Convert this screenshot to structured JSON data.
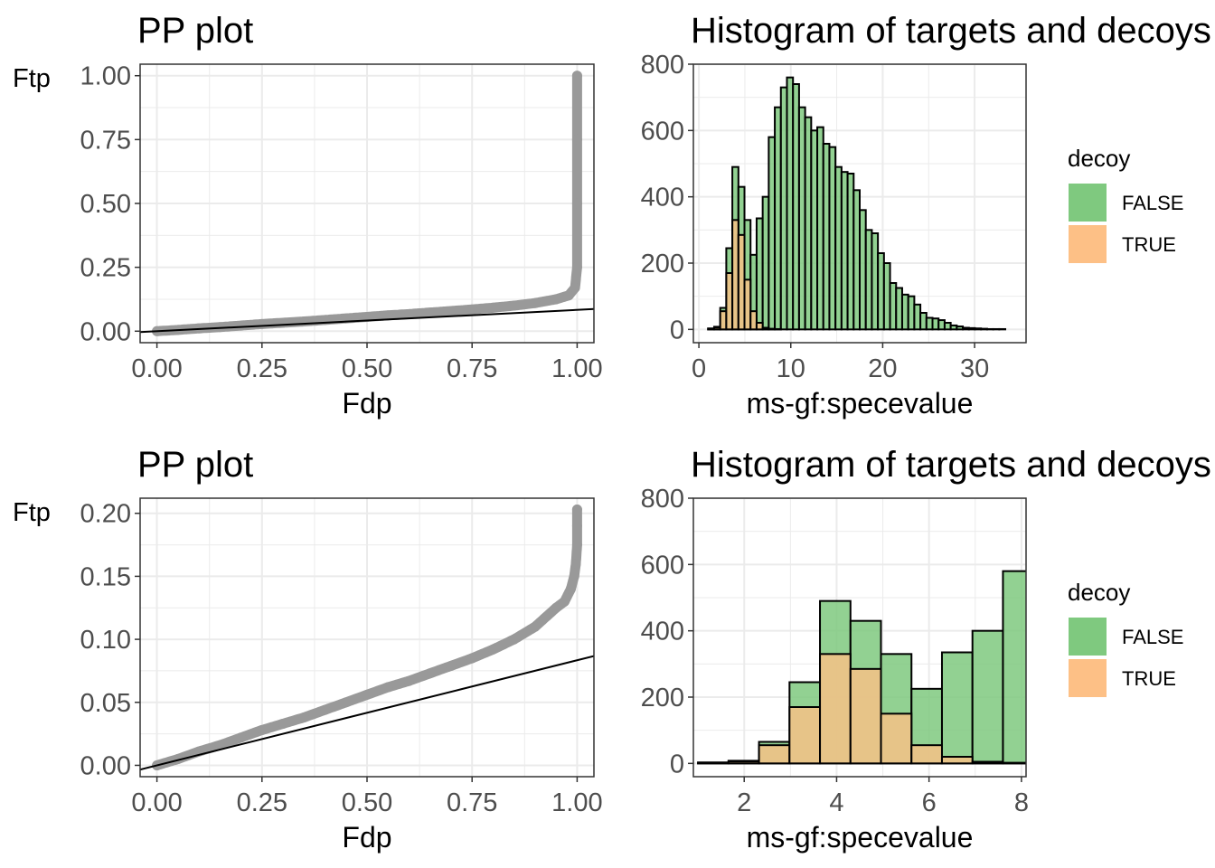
{
  "colors": {
    "pp_points": "#999999",
    "ref_line": "#000000",
    "grid": "#ebebeb",
    "false_fill": "#7fc97f",
    "true_fill": "#fdc086",
    "bar_outline": "#000000",
    "axis_text": "#4d4d4d"
  },
  "legend": {
    "title": "decoy",
    "items": [
      {
        "label": "FALSE",
        "color": "#7fc97f"
      },
      {
        "label": "TRUE",
        "color": "#fdc086"
      }
    ]
  },
  "chart_data": [
    {
      "id": "pp1",
      "type": "scatter",
      "title": "PP plot",
      "xlabel": "Fdp",
      "ylabel": "Ftp",
      "xlim": [
        -0.04,
        1.04
      ],
      "ylim": [
        -0.045,
        1.045
      ],
      "xticks": [
        0,
        0.25,
        0.5,
        0.75,
        1
      ],
      "xtick_labels": [
        "0.00",
        "0.25",
        "0.50",
        "0.75",
        "1.00"
      ],
      "yticks": [
        0,
        0.25,
        0.5,
        0.75,
        1
      ],
      "ytick_labels": [
        "0.00",
        "0.25",
        "0.50",
        "0.75",
        "1.00"
      ],
      "points": [
        [
          0,
          0
        ],
        [
          0.05,
          0.005
        ],
        [
          0.1,
          0.011
        ],
        [
          0.15,
          0.016
        ],
        [
          0.2,
          0.022
        ],
        [
          0.25,
          0.028
        ],
        [
          0.3,
          0.033
        ],
        [
          0.35,
          0.038
        ],
        [
          0.4,
          0.044
        ],
        [
          0.45,
          0.05
        ],
        [
          0.5,
          0.056
        ],
        [
          0.55,
          0.062
        ],
        [
          0.6,
          0.067
        ],
        [
          0.65,
          0.073
        ],
        [
          0.7,
          0.079
        ],
        [
          0.75,
          0.085
        ],
        [
          0.8,
          0.092
        ],
        [
          0.85,
          0.1
        ],
        [
          0.9,
          0.11
        ],
        [
          0.95,
          0.125
        ],
        [
          0.98,
          0.14
        ],
        [
          0.995,
          0.17
        ],
        [
          1,
          0.25
        ],
        [
          1,
          0.5
        ],
        [
          1,
          0.75
        ],
        [
          1,
          1
        ]
      ],
      "ref_line": {
        "intercept": 0,
        "slope": 0.0834
      }
    },
    {
      "id": "hist1",
      "type": "bar",
      "title": "Histogram of targets and decoys",
      "xlabel": "ms-gf:specevalue",
      "ylabel": "",
      "xlim": [
        -0.6,
        35.6
      ],
      "ylim": [
        -40,
        800
      ],
      "xticks": [
        0,
        10,
        20,
        30
      ],
      "xtick_labels": [
        "0",
        "10",
        "20",
        "30"
      ],
      "yticks": [
        0,
        200,
        400,
        600,
        800
      ],
      "ytick_labels": [
        "0",
        "200",
        "400",
        "600",
        "800"
      ],
      "bin_start": 1.0,
      "bin_width": 0.66,
      "series": [
        {
          "name": "FALSE",
          "values": [
            3,
            8,
            65,
            245,
            490,
            430,
            330,
            225,
            335,
            400,
            580,
            670,
            730,
            760,
            740,
            670,
            640,
            600,
            610,
            560,
            550,
            490,
            475,
            470,
            420,
            360,
            300,
            290,
            230,
            200,
            140,
            125,
            105,
            100,
            75,
            50,
            35,
            33,
            28,
            20,
            12,
            9,
            5,
            4,
            3,
            2,
            1,
            1,
            1,
            0,
            0
          ]
        },
        {
          "name": "TRUE",
          "values": [
            2,
            6,
            55,
            170,
            330,
            285,
            150,
            55,
            20,
            5,
            2,
            1
          ]
        }
      ]
    },
    {
      "id": "pp2",
      "type": "scatter",
      "title": "PP plot",
      "xlabel": "Fdp",
      "ylabel": "Ftp",
      "xlim": [
        -0.04,
        1.04
      ],
      "ylim": [
        -0.009,
        0.212
      ],
      "xticks": [
        0,
        0.25,
        0.5,
        0.75,
        1
      ],
      "xtick_labels": [
        "0.00",
        "0.25",
        "0.50",
        "0.75",
        "1.00"
      ],
      "yticks": [
        0,
        0.05,
        0.1,
        0.15,
        0.2
      ],
      "ytick_labels": [
        "0.00",
        "0.05",
        "0.10",
        "0.15",
        "0.20"
      ],
      "points": [
        [
          0,
          0
        ],
        [
          0.05,
          0.005
        ],
        [
          0.1,
          0.011
        ],
        [
          0.15,
          0.016
        ],
        [
          0.2,
          0.022
        ],
        [
          0.25,
          0.028
        ],
        [
          0.3,
          0.033
        ],
        [
          0.35,
          0.038
        ],
        [
          0.4,
          0.044
        ],
        [
          0.45,
          0.05
        ],
        [
          0.5,
          0.056
        ],
        [
          0.55,
          0.062
        ],
        [
          0.6,
          0.067
        ],
        [
          0.65,
          0.073
        ],
        [
          0.7,
          0.079
        ],
        [
          0.75,
          0.085
        ],
        [
          0.8,
          0.092
        ],
        [
          0.85,
          0.1
        ],
        [
          0.9,
          0.11
        ],
        [
          0.95,
          0.125
        ],
        [
          0.97,
          0.13
        ],
        [
          0.985,
          0.14
        ],
        [
          0.993,
          0.15
        ],
        [
          0.997,
          0.16
        ],
        [
          1,
          0.175
        ],
        [
          1,
          0.19
        ],
        [
          1,
          0.203
        ]
      ],
      "ref_line": {
        "intercept": 0,
        "slope": 0.0834
      }
    },
    {
      "id": "hist2",
      "type": "bar",
      "title": "Histogram of targets and decoys",
      "xlabel": "ms-gf:specevalue",
      "ylabel": "",
      "xlim": [
        0.9,
        8.1
      ],
      "ylim": [
        -40,
        800
      ],
      "xticks": [
        2,
        4,
        6,
        8
      ],
      "xtick_labels": [
        "2",
        "4",
        "6",
        "8"
      ],
      "yticks": [
        0,
        200,
        400,
        600,
        800
      ],
      "ytick_labels": [
        "0",
        "200",
        "400",
        "600",
        "800"
      ],
      "bin_start": 1.0,
      "bin_width": 0.66,
      "series": [
        {
          "name": "FALSE",
          "values": [
            3,
            8,
            65,
            245,
            490,
            430,
            330,
            225,
            335,
            400,
            580
          ]
        },
        {
          "name": "TRUE",
          "values": [
            2,
            6,
            55,
            170,
            330,
            285,
            150,
            55,
            20,
            5,
            2
          ]
        }
      ]
    }
  ]
}
